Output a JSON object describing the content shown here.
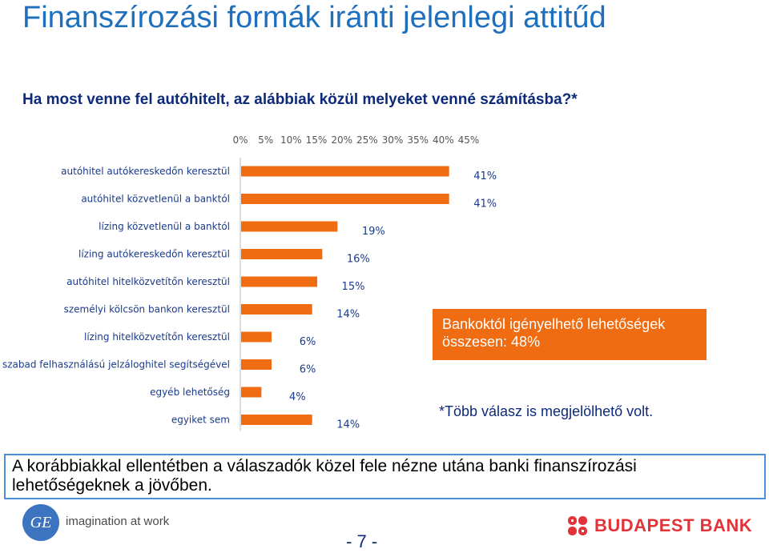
{
  "title": "Finanszírozási formák iránti jelenlegi attitűd",
  "subtitle": "Ha most venne fel autóhitelt, az alábbiak közül melyeket venné számításba?*",
  "callout": "Bankoktól igényelhető lehetőségek összesen: 48%",
  "note": "*Több válasz is megjelölhető volt.",
  "conclusion": "A korábbiakkal ellentétben a válaszadók közel fele nézne utána banki finanszírozási lehetőségeknek a jövőben.",
  "footer": {
    "ge_logo_text": "GE",
    "ge_tagline": "imagination at work",
    "page_number": "- 7 -",
    "bank_name": "BUDAPEST BANK"
  },
  "colors": {
    "bar": "#ef6c13",
    "title": "#1f6fbf",
    "subtitle": "#0d2a7a",
    "callout": "#ef6c13",
    "conclusion_border": "#4a90d9",
    "bank_red": "#e0343a"
  },
  "chart_data": {
    "type": "bar",
    "orientation": "horizontal",
    "categories": [
      "autóhitel autókereskedőn keresztül",
      "autóhitel közvetlenül a banktól",
      "lízing közvetlenül a banktól",
      "lízing autókereskedőn keresztül",
      "autóhitel hitelközvetítőn keresztül",
      "személyi kölcsön bankon keresztül",
      "lízing hitelközvetítőn keresztül",
      "szabad felhasználású jelzáloghitel segítségével",
      "egyéb lehetőség",
      "egyiket sem"
    ],
    "values": [
      41,
      41,
      19,
      16,
      15,
      14,
      6,
      6,
      4,
      14
    ],
    "value_labels": [
      "41%",
      "41%",
      "19%",
      "16%",
      "15%",
      "14%",
      "6%",
      "6%",
      "4%",
      "14%"
    ],
    "xlim": [
      0,
      45
    ],
    "x_ticks": [
      "0%",
      "5%",
      "10%",
      "15%",
      "20%",
      "25%",
      "30%",
      "35%",
      "40%",
      "45%"
    ],
    "axis_position": "top",
    "grid": false,
    "legend": "none"
  }
}
